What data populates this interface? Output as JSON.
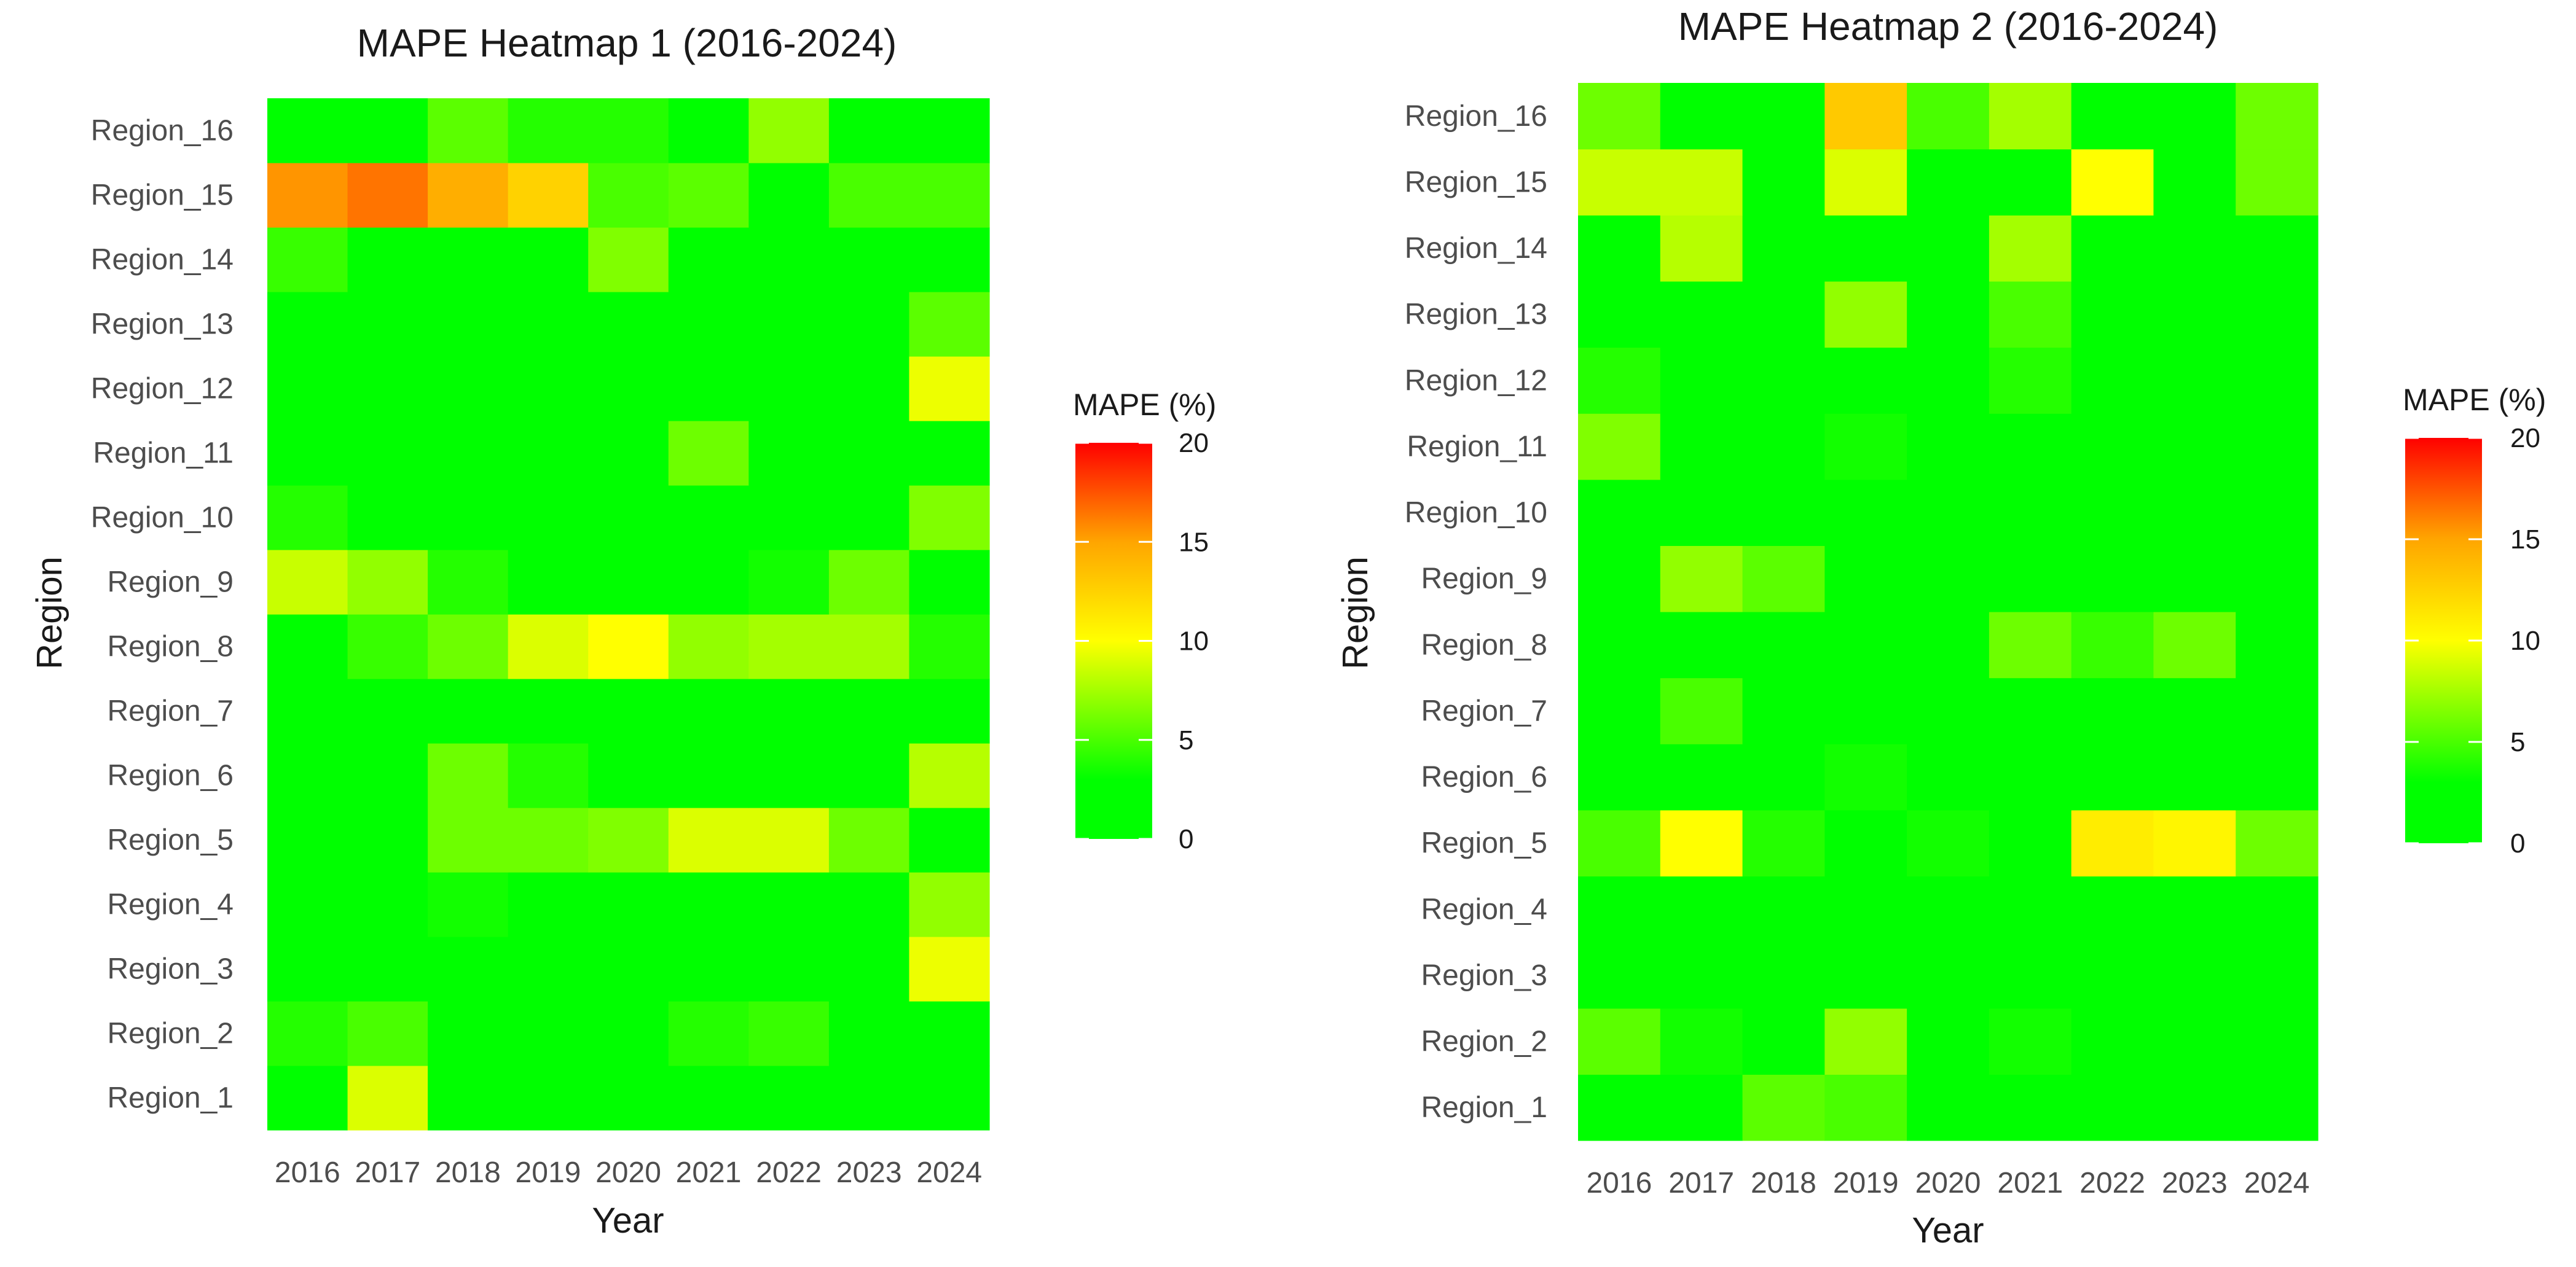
{
  "chart_data": [
    {
      "type": "heatmap",
      "title": "MAPE Heatmap 1 (2016-2024)",
      "xlabel": "Year",
      "ylabel": "Region",
      "x": [
        "2016",
        "2017",
        "2018",
        "2019",
        "2020",
        "2021",
        "2022",
        "2023",
        "2024"
      ],
      "y": [
        "Region_1",
        "Region_2",
        "Region_3",
        "Region_4",
        "Region_5",
        "Region_6",
        "Region_7",
        "Region_8",
        "Region_9",
        "Region_10",
        "Region_11",
        "Region_12",
        "Region_13",
        "Region_14",
        "Region_15",
        "Region_16"
      ],
      "values": [
        [
          2,
          9,
          0,
          0,
          0,
          0,
          0,
          0,
          0
        ],
        [
          4,
          5,
          0,
          2,
          3,
          4,
          4.5,
          0,
          0
        ],
        [
          0,
          0,
          0,
          0,
          0,
          0,
          0,
          3,
          9.5
        ],
        [
          0,
          3,
          3.5,
          0,
          0,
          0,
          0,
          0,
          7
        ],
        [
          2,
          0,
          6,
          6,
          6.5,
          9,
          9,
          6,
          0
        ],
        [
          0,
          0,
          6,
          4,
          0,
          0,
          0,
          0,
          8
        ],
        [
          0,
          0,
          0,
          0,
          0,
          0,
          0,
          0,
          0
        ],
        [
          0,
          4.5,
          6,
          9,
          10,
          7,
          7.5,
          7.5,
          4
        ],
        [
          8.5,
          7,
          4,
          0,
          0,
          0,
          3.5,
          6,
          0
        ],
        [
          4,
          0,
          0,
          0,
          0,
          0,
          0,
          0,
          6.5
        ],
        [
          0,
          0,
          0,
          0,
          0,
          6,
          0,
          0,
          0
        ],
        [
          0,
          0,
          0,
          0,
          0,
          0,
          0,
          0,
          9.5
        ],
        [
          0,
          0,
          0,
          0,
          0,
          0,
          0,
          0,
          5.5
        ],
        [
          4.5,
          0,
          0,
          0,
          6.5,
          0,
          0,
          3,
          2.5
        ],
        [
          15.5,
          16.5,
          14.5,
          12.5,
          5,
          5.5,
          1.5,
          5,
          5
        ],
        [
          0,
          0,
          5.5,
          4,
          4,
          0,
          7,
          0,
          0
        ]
      ],
      "colorbar": {
        "title": "MAPE (%)",
        "range": [
          0,
          20
        ],
        "ticks": [
          "0",
          "5",
          "10",
          "15",
          "20"
        ]
      }
    },
    {
      "type": "heatmap",
      "title": "MAPE Heatmap 2 (2016-2024)",
      "xlabel": "Year",
      "ylabel": "Region",
      "x": [
        "2016",
        "2017",
        "2018",
        "2019",
        "2020",
        "2021",
        "2022",
        "2023",
        "2024"
      ],
      "y": [
        "Region_1",
        "Region_2",
        "Region_3",
        "Region_4",
        "Region_5",
        "Region_6",
        "Region_7",
        "Region_8",
        "Region_9",
        "Region_10",
        "Region_11",
        "Region_12",
        "Region_13",
        "Region_14",
        "Region_15",
        "Region_16"
      ],
      "values": [
        [
          0,
          0,
          5.5,
          5,
          0,
          0,
          2,
          0,
          0
        ],
        [
          5.5,
          3.5,
          0,
          7,
          0,
          3.5,
          0,
          0,
          2
        ],
        [
          0,
          0,
          0,
          0,
          0,
          0,
          0,
          0,
          0
        ],
        [
          0,
          0,
          0,
          0,
          0,
          0,
          0,
          0,
          0
        ],
        [
          5,
          10,
          4,
          0,
          3.5,
          3,
          11,
          10.5,
          6
        ],
        [
          0,
          0,
          0,
          3.5,
          0,
          0,
          0,
          0,
          0
        ],
        [
          0,
          5,
          0,
          0,
          0,
          0,
          0,
          0,
          0
        ],
        [
          0,
          0,
          0,
          0,
          0,
          6,
          4.5,
          6,
          0
        ],
        [
          0,
          7,
          5.5,
          0,
          0,
          0,
          0,
          0,
          0
        ],
        [
          0,
          3,
          0,
          0,
          0,
          0,
          0,
          0,
          0
        ],
        [
          6.5,
          0,
          0,
          3.5,
          0,
          0,
          0,
          0,
          0
        ],
        [
          4,
          0,
          0,
          0,
          0,
          4,
          0,
          0,
          0
        ],
        [
          0,
          0,
          0,
          7,
          0,
          5,
          0,
          0,
          0
        ],
        [
          2.5,
          8,
          0,
          0,
          0,
          7.5,
          0,
          0,
          1.5
        ],
        [
          8.5,
          8.5,
          0,
          9,
          3,
          0,
          10,
          0,
          6
        ],
        [
          6,
          0,
          0,
          13,
          5,
          7.5,
          3,
          1.5,
          6
        ]
      ],
      "colorbar": {
        "title": "MAPE (%)",
        "range": [
          0,
          20
        ],
        "ticks": [
          "0",
          "5",
          "10",
          "15",
          "20"
        ]
      }
    }
  ]
}
